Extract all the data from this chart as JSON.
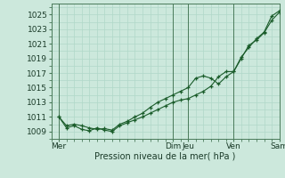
{
  "background_color": "#cce8dc",
  "grid_color": "#b0d8c8",
  "line_color": "#1a5c2a",
  "marker_color": "#1a5c2a",
  "xlabel": "Pression niveau de la mer( hPa )",
  "ylim": [
    1008.0,
    1026.5
  ],
  "xlim": [
    0,
    180
  ],
  "yticks": [
    1009,
    1011,
    1013,
    1015,
    1017,
    1019,
    1021,
    1023,
    1025
  ],
  "day_labels": [
    "Mer",
    "Dim",
    "Jeu",
    "Ven",
    "Sam"
  ],
  "day_x": [
    6,
    96,
    108,
    144,
    180
  ],
  "vline_x": [
    6,
    96,
    108,
    144,
    180
  ],
  "series1_x": [
    6,
    12,
    18,
    24,
    30,
    36,
    42,
    48,
    54,
    60,
    66,
    72,
    78,
    84,
    90,
    96,
    102,
    108,
    114,
    120,
    126,
    132,
    138,
    144,
    150,
    156,
    162,
    168,
    174,
    180
  ],
  "series1_y": [
    1011.0,
    1009.5,
    1009.8,
    1009.3,
    1009.1,
    1009.5,
    1009.2,
    1009.0,
    1009.8,
    1010.2,
    1010.6,
    1011.0,
    1011.5,
    1012.0,
    1012.5,
    1013.0,
    1013.3,
    1013.5,
    1014.0,
    1014.5,
    1015.2,
    1016.5,
    1017.2,
    1017.2,
    1019.0,
    1020.8,
    1021.5,
    1022.5,
    1024.2,
    1025.3
  ],
  "series2_x": [
    6,
    12,
    18,
    24,
    30,
    36,
    42,
    48,
    54,
    60,
    66,
    72,
    78,
    84,
    90,
    96,
    102,
    108,
    114,
    120,
    126,
    132,
    138,
    144,
    150,
    156,
    162,
    168,
    174,
    180
  ],
  "series2_y": [
    1011.0,
    1009.8,
    1010.0,
    1009.8,
    1009.5,
    1009.3,
    1009.4,
    1009.2,
    1010.0,
    1010.4,
    1011.0,
    1011.5,
    1012.3,
    1013.0,
    1013.5,
    1014.0,
    1014.5,
    1015.0,
    1016.3,
    1016.6,
    1016.3,
    1015.5,
    1016.5,
    1017.2,
    1019.2,
    1020.5,
    1021.7,
    1022.6,
    1024.8,
    1025.5
  ]
}
